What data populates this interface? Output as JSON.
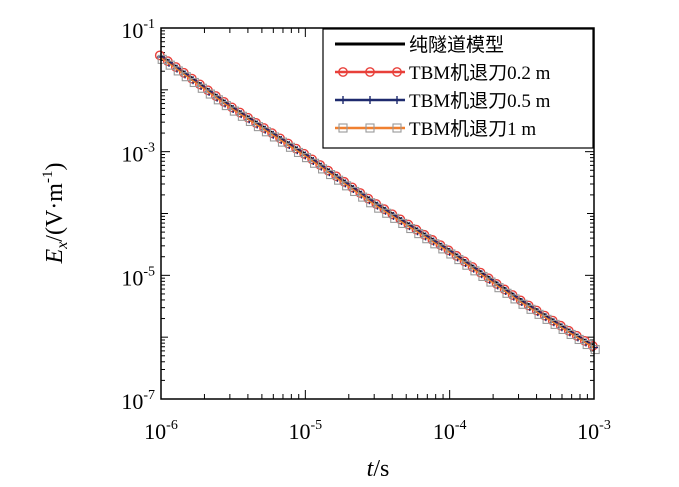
{
  "chart_data": {
    "type": "line",
    "xlabel": {
      "italic": "t",
      "unit": "/s"
    },
    "ylabel": {
      "italic": "E",
      "subscript": "x",
      "unit": "/(V·m",
      "unit_sup": "-1",
      "unit_end": ")"
    },
    "xscale": "log",
    "yscale": "log",
    "xlim": [
      1e-06,
      0.001
    ],
    "ylim": [
      1e-07,
      0.1
    ],
    "x_ticks": [
      {
        "base": "10",
        "exp": "-6"
      },
      {
        "base": "10",
        "exp": "-5"
      },
      {
        "base": "10",
        "exp": "-4"
      },
      {
        "base": "10",
        "exp": "-3"
      }
    ],
    "y_ticks": [
      {
        "base": "10",
        "exp": "-7"
      },
      {
        "base": "10",
        "exp": "-5"
      },
      {
        "base": "10",
        "exp": "-3"
      },
      {
        "base": "10",
        "exp": "-1"
      }
    ],
    "grid": false,
    "legend_position": "top-right",
    "series": [
      {
        "name": "纯隧道模型",
        "color": "#000000",
        "marker": "none",
        "x": [
          1e-06,
          3e-06,
          1e-05,
          3e-05,
          0.0001,
          0.0003,
          0.001
        ],
        "y": [
          0.035,
          0.0055,
          0.0009,
          0.00015,
          2.5e-05,
          4.2e-06,
          7e-07
        ]
      },
      {
        "name": "TBM机退刀0.2 m",
        "color": "#e8403a",
        "marker": "circle",
        "x": [
          1e-06,
          3e-06,
          1e-05,
          3e-05,
          0.0001,
          0.0003,
          0.001
        ],
        "y": [
          0.034,
          0.0053,
          0.00087,
          0.000145,
          2.4e-05,
          4e-06,
          6.8e-07
        ]
      },
      {
        "name": "TBM机退刀0.5 m",
        "color": "#1e2a6e",
        "marker": "plus",
        "x": [
          1e-06,
          3e-06,
          1e-05,
          3e-05,
          0.0001,
          0.0003,
          0.001
        ],
        "y": [
          0.034,
          0.0053,
          0.00087,
          0.000145,
          2.4e-05,
          4e-06,
          6.8e-07
        ]
      },
      {
        "name": "TBM机退刀1 m",
        "color": "#f08030",
        "marker": "square",
        "x": [
          1e-06,
          3e-06,
          1e-05,
          3e-05,
          0.0001,
          0.0003,
          0.001
        ],
        "y": [
          0.033,
          0.0052,
          0.00085,
          0.00014,
          2.35e-05,
          3.9e-06,
          6.7e-07
        ]
      }
    ]
  },
  "colors": {
    "axis": "#000000",
    "marker_gray": "#999999"
  }
}
